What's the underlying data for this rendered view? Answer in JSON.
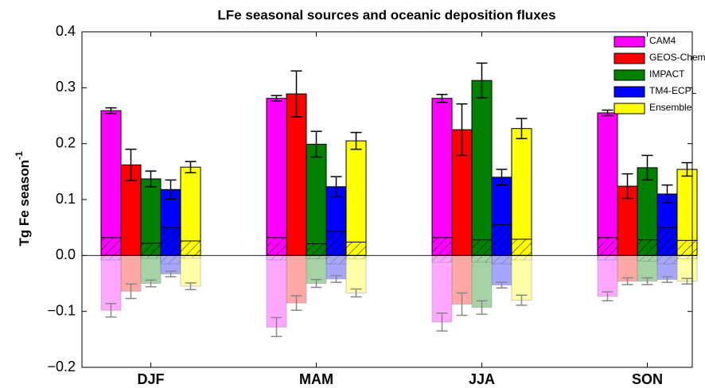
{
  "chart_data": {
    "type": "bar",
    "title": "LFe seasonal sources and oceanic deposition fluxes",
    "y_label": "Tg Fe season",
    "y_label_exponent": "-1",
    "categories": [
      "DJF",
      "MAM",
      "JJA",
      "SON"
    ],
    "ylim": [
      -0.2,
      0.4
    ],
    "yticks": [
      {
        "value": -0.2,
        "label": "−0.2"
      },
      {
        "value": -0.1,
        "label": "−0.1"
      },
      {
        "value": 0,
        "label": "0.0"
      },
      0.1,
      0.2,
      0.3,
      0.4
    ],
    "legend": "upper right",
    "series": [
      {
        "name": "CAM4",
        "color": "#ff00ff",
        "values": [
          0.259,
          0.281,
          0.281,
          0.255
        ],
        "errors": [
          0.005,
          0.005,
          0.007,
          0.005
        ],
        "hatched_values": [
          0.032,
          0.032,
          0.032,
          0.032
        ],
        "deposition": [
          -0.098,
          -0.128,
          -0.119,
          -0.073
        ],
        "deposition_errors": [
          0.012,
          0.017,
          0.016,
          0.008
        ],
        "deposition_hatched": [
          -0.008,
          -0.008,
          -0.012,
          -0.008
        ]
      },
      {
        "name": "GEOS-Chem",
        "color": "#ff0000",
        "values": [
          0.162,
          0.289,
          0.225,
          0.124
        ],
        "errors": [
          0.028,
          0.041,
          0.046,
          0.022
        ],
        "hatched_values": [
          null,
          null,
          null,
          null
        ],
        "deposition": [
          -0.064,
          -0.085,
          -0.087,
          -0.046
        ],
        "deposition_errors": [
          0.013,
          0.013,
          0.02,
          0.006
        ],
        "deposition_hatched": [
          null,
          null,
          null,
          null
        ]
      },
      {
        "name": "IMPACT",
        "color": "#008000",
        "values": [
          0.137,
          0.199,
          0.313,
          0.157
        ],
        "errors": [
          0.014,
          0.023,
          0.031,
          0.022
        ],
        "hatched_values": [
          0.022,
          0.021,
          0.028,
          0.028
        ],
        "deposition": [
          -0.05,
          -0.05,
          -0.093,
          -0.046
        ],
        "deposition_errors": [
          0.006,
          0.007,
          0.012,
          0.006
        ],
        "deposition_hatched": [
          -0.005,
          -0.006,
          -0.012,
          -0.01
        ]
      },
      {
        "name": "TM4-ECPL",
        "color": "#0000ff",
        "values": [
          0.118,
          0.123,
          0.14,
          0.11
        ],
        "errors": [
          0.017,
          0.018,
          0.014,
          0.016
        ],
        "hatched_values": [
          0.05,
          0.043,
          0.055,
          0.05
        ],
        "deposition": [
          -0.033,
          -0.042,
          -0.053,
          -0.043
        ],
        "deposition_errors": [
          0.005,
          0.006,
          0.005,
          0.005
        ],
        "deposition_hatched": [
          -0.015,
          -0.015,
          -0.015,
          -0.015
        ]
      },
      {
        "name": "Ensemble",
        "color": "#ffff00",
        "values": [
          0.158,
          0.205,
          0.227,
          0.154
        ],
        "errors": [
          0.01,
          0.015,
          0.018,
          0.012
        ],
        "hatched_values": [
          0.026,
          0.024,
          0.029,
          0.027
        ],
        "deposition": [
          -0.055,
          -0.067,
          -0.08,
          -0.046
        ],
        "deposition_errors": [
          0.006,
          0.007,
          0.009,
          0.005
        ],
        "deposition_hatched": [
          -0.005,
          -0.006,
          -0.008,
          -0.006
        ]
      }
    ]
  }
}
